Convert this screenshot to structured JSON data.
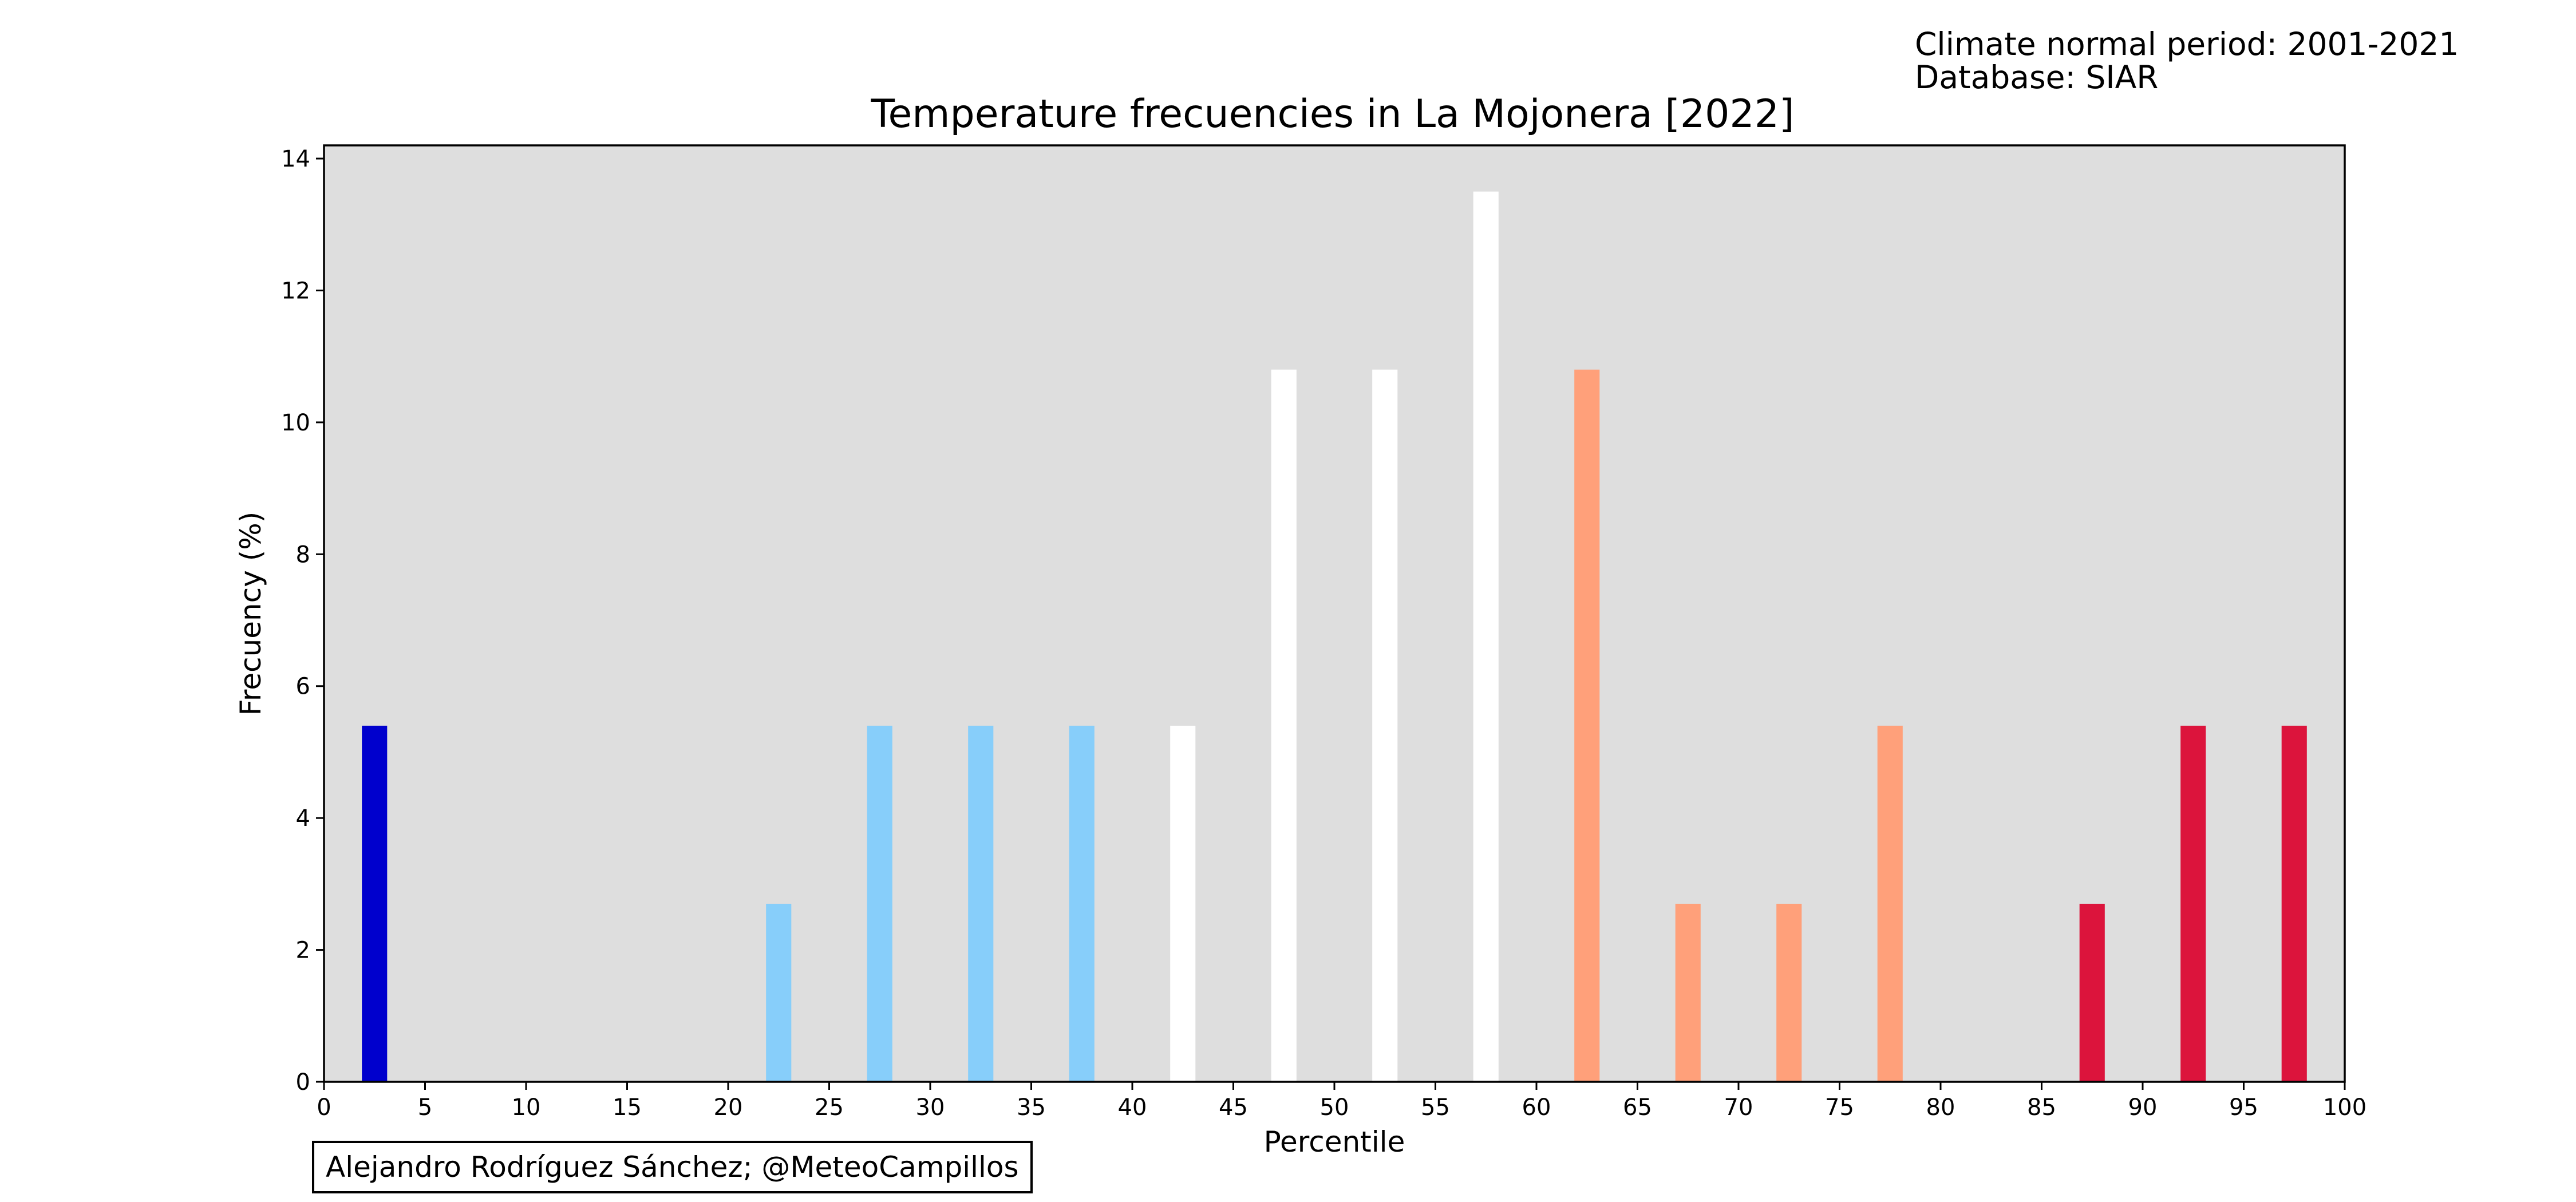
{
  "header": {
    "normal_period": "Climate normal period: 2001-2021",
    "database": "Database: SIAR"
  },
  "credit": "Alejandro Rodríguez Sánchez; @MeteoCampillos",
  "chart_data": {
    "type": "bar",
    "title": "Temperature frecuencies in La Mojonera [2022]",
    "xlabel": "Percentile",
    "ylabel": "Frecuency (%)",
    "xlim": [
      0,
      100
    ],
    "ylim": [
      0,
      14.2
    ],
    "xticks": [
      0,
      5,
      10,
      15,
      20,
      25,
      30,
      35,
      40,
      45,
      50,
      55,
      60,
      65,
      70,
      75,
      80,
      85,
      90,
      95,
      100
    ],
    "yticks": [
      0,
      2,
      4,
      6,
      8,
      10,
      12,
      14
    ],
    "bar_width": 1.25,
    "background_color": "#dedede",
    "grid": false,
    "bars": [
      {
        "x": 2.5,
        "value": 5.4,
        "color": "#0000cd"
      },
      {
        "x": 22.5,
        "value": 2.7,
        "color": "#87cefa"
      },
      {
        "x": 27.5,
        "value": 5.4,
        "color": "#87cefa"
      },
      {
        "x": 32.5,
        "value": 5.4,
        "color": "#87cefa"
      },
      {
        "x": 37.5,
        "value": 5.4,
        "color": "#87cefa"
      },
      {
        "x": 42.5,
        "value": 5.4,
        "color": "#ffffff"
      },
      {
        "x": 47.5,
        "value": 10.8,
        "color": "#ffffff"
      },
      {
        "x": 52.5,
        "value": 10.8,
        "color": "#ffffff"
      },
      {
        "x": 57.5,
        "value": 13.5,
        "color": "#ffffff"
      },
      {
        "x": 62.5,
        "value": 10.8,
        "color": "#ffa07a"
      },
      {
        "x": 67.5,
        "value": 2.7,
        "color": "#ffa07a"
      },
      {
        "x": 72.5,
        "value": 2.7,
        "color": "#ffa07a"
      },
      {
        "x": 77.5,
        "value": 5.4,
        "color": "#ffa07a"
      },
      {
        "x": 87.5,
        "value": 2.7,
        "color": "#dc143c"
      },
      {
        "x": 92.5,
        "value": 5.4,
        "color": "#dc143c"
      },
      {
        "x": 97.5,
        "value": 5.4,
        "color": "#dc143c"
      }
    ]
  }
}
